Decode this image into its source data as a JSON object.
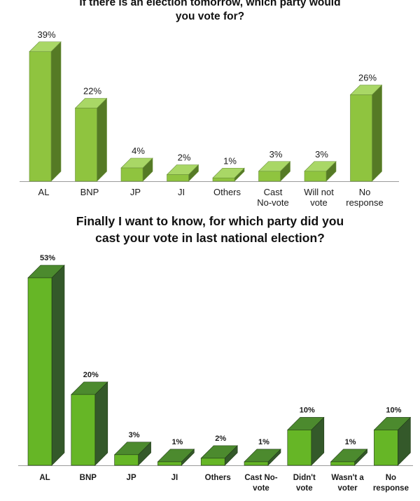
{
  "chart_data": [
    {
      "type": "bar",
      "title": "If there is an election tomorrow, which party would you vote for?",
      "title_lines": [
        "If there is an election tomorrow, which party would",
        "you vote for?"
      ],
      "categories": [
        "AL",
        "BNP",
        "JP",
        "JI",
        "Others",
        "Cast No-vote",
        "Will not vote",
        "No response"
      ],
      "category_lines": [
        [
          "AL"
        ],
        [
          "BNP"
        ],
        [
          "JP"
        ],
        [
          "JI"
        ],
        [
          "Others"
        ],
        [
          "Cast",
          "No-vote"
        ],
        [
          "Will not",
          "vote"
        ],
        [
          "No",
          "response"
        ]
      ],
      "values": [
        39,
        22,
        4,
        2,
        1,
        3,
        3,
        26
      ],
      "value_labels": [
        "39%",
        "22%",
        "4%",
        "2%",
        "1%",
        "3%",
        "3%",
        "26%"
      ],
      "unit": "%",
      "ylim": [
        0,
        40
      ],
      "grid": false,
      "style": "3d",
      "colors": {
        "front": "#8fc43f",
        "side": "#557a25",
        "top": "#a9d766"
      }
    },
    {
      "type": "bar",
      "title": "Finally I want to know, for which party did you cast your vote in last national election?",
      "title_lines": [
        "Finally I want to know, for which party did you",
        "cast your vote in last national election?"
      ],
      "categories": [
        "AL",
        "BNP",
        "JP",
        "JI",
        "Others",
        "Cast No-vote",
        "Didn't vote",
        "Wasn't a voter",
        "No response"
      ],
      "category_lines": [
        [
          "AL"
        ],
        [
          "BNP"
        ],
        [
          "JP"
        ],
        [
          "JI"
        ],
        [
          "Others"
        ],
        [
          "Cast No-",
          "vote"
        ],
        [
          "Didn't",
          "vote"
        ],
        [
          "Wasn't a",
          "voter"
        ],
        [
          "No",
          "response"
        ]
      ],
      "values": [
        53,
        20,
        3,
        1,
        2,
        1,
        10,
        1,
        10
      ],
      "value_labels": [
        "53%",
        "20%",
        "3%",
        "1%",
        "2%",
        "1%",
        "10%",
        "1%",
        "10%"
      ],
      "unit": "%",
      "ylim": [
        0,
        53
      ],
      "grid": false,
      "style": "3d",
      "colors": {
        "front": "#66b626",
        "side": "#34592a",
        "top": "#4c8a2e"
      }
    }
  ]
}
